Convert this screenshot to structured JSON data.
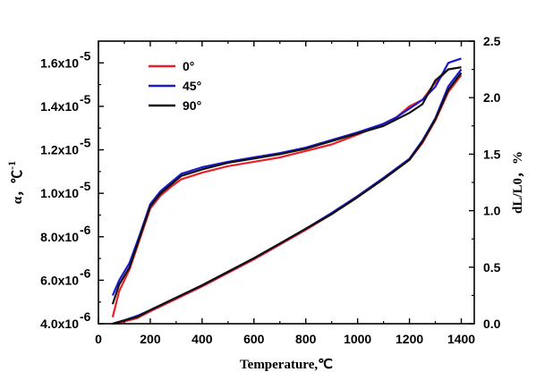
{
  "chart_data": {
    "type": "line",
    "xlabel": "Temperature,℃",
    "ylabel_left": "α，℃",
    "ylabel_left_sup": "-1",
    "ylabel_right": "dL/L0，%",
    "xlim": [
      0,
      1450
    ],
    "ylim_left": [
      4e-06,
      1.7e-05
    ],
    "ylim_right": [
      0,
      2.5
    ],
    "x_ticks": [
      0,
      200,
      400,
      600,
      800,
      1000,
      1200,
      1400
    ],
    "x_tick_labels": [
      "0",
      "200",
      "400",
      "600",
      "800",
      "1000",
      "1200",
      "1400"
    ],
    "y_left_ticks": [
      4e-06,
      6e-06,
      8e-06,
      1e-05,
      1.2e-05,
      1.4e-05,
      1.6e-05
    ],
    "y_left_tick_mantissa": [
      "4.0x10",
      "6.0x10",
      "8.0x10",
      "1.0x10",
      "1.2x10",
      "1.4x10",
      "1.6x10"
    ],
    "y_left_tick_exponent": [
      "-6",
      "-6",
      "-6",
      "-5",
      "-5",
      "-5",
      "-5"
    ],
    "y_right_ticks": [
      0.0,
      0.5,
      1.0,
      1.5,
      2.0,
      2.5
    ],
    "y_right_tick_labels": [
      "0.0",
      "0.5",
      "1.0",
      "1.5",
      "2.0",
      "2.5"
    ],
    "series": [
      {
        "name": "0°",
        "color": "#e8202a",
        "alpha_x": [
          55,
          80,
          120,
          160,
          200,
          240,
          280,
          320,
          400,
          500,
          600,
          700,
          800,
          900,
          1000,
          1100,
          1150,
          1200,
          1250,
          1300,
          1350,
          1400
        ],
        "alpha_y": [
          4.3e-06,
          5.5e-06,
          6.5e-06,
          7.9e-06,
          9.3e-06,
          9.9e-06,
          1.03e-05,
          1.065e-05,
          1.095e-05,
          1.125e-05,
          1.145e-05,
          1.165e-05,
          1.195e-05,
          1.225e-05,
          1.27e-05,
          1.32e-05,
          1.35e-05,
          1.4e-05,
          1.43e-05,
          1.51e-05,
          1.57e-05,
          1.58e-05
        ],
        "dl_x": [
          55,
          100,
          150,
          200,
          300,
          400,
          500,
          600,
          700,
          800,
          900,
          1000,
          1100,
          1200,
          1250,
          1300,
          1350,
          1400
        ],
        "dl_y": [
          0.0,
          0.02,
          0.05,
          0.11,
          0.22,
          0.33,
          0.45,
          0.57,
          0.7,
          0.83,
          0.97,
          1.12,
          1.28,
          1.45,
          1.6,
          1.8,
          2.05,
          2.2
        ]
      },
      {
        "name": "45°",
        "color": "#1a1acc",
        "alpha_x": [
          55,
          80,
          120,
          160,
          200,
          240,
          280,
          320,
          400,
          500,
          600,
          700,
          800,
          900,
          1000,
          1100,
          1150,
          1200,
          1250,
          1300,
          1350,
          1400
        ],
        "alpha_y": [
          5.3e-06,
          6e-06,
          6.8e-06,
          8.1e-06,
          9.5e-06,
          1.01e-05,
          1.05e-05,
          1.09e-05,
          1.12e-05,
          1.145e-05,
          1.165e-05,
          1.185e-05,
          1.21e-05,
          1.245e-05,
          1.28e-05,
          1.32e-05,
          1.35e-05,
          1.39e-05,
          1.43e-05,
          1.49e-05,
          1.6e-05,
          1.62e-05
        ],
        "dl_x": [
          55,
          100,
          150,
          200,
          300,
          400,
          500,
          600,
          700,
          800,
          900,
          1000,
          1100,
          1200,
          1250,
          1300,
          1350,
          1400
        ],
        "dl_y": [
          0.0,
          0.03,
          0.07,
          0.12,
          0.23,
          0.34,
          0.46,
          0.58,
          0.71,
          0.84,
          0.98,
          1.13,
          1.29,
          1.46,
          1.62,
          1.82,
          2.1,
          2.25
        ]
      },
      {
        "name": "90°",
        "color": "#111111",
        "alpha_x": [
          55,
          80,
          120,
          160,
          200,
          240,
          280,
          320,
          400,
          500,
          600,
          700,
          800,
          900,
          1000,
          1100,
          1150,
          1200,
          1250,
          1300,
          1350,
          1400
        ],
        "alpha_y": [
          4.9e-06,
          5.8e-06,
          6.6e-06,
          8e-06,
          9.4e-06,
          1e-05,
          1.04e-05,
          1.08e-05,
          1.11e-05,
          1.14e-05,
          1.16e-05,
          1.18e-05,
          1.205e-05,
          1.24e-05,
          1.275e-05,
          1.31e-05,
          1.34e-05,
          1.37e-05,
          1.41e-05,
          1.52e-05,
          1.57e-05,
          1.58e-05
        ],
        "dl_x": [
          55,
          100,
          150,
          200,
          300,
          400,
          500,
          600,
          700,
          800,
          900,
          1000,
          1100,
          1200,
          1250,
          1300,
          1350,
          1400
        ],
        "dl_y": [
          0.0,
          0.03,
          0.06,
          0.12,
          0.23,
          0.34,
          0.46,
          0.58,
          0.71,
          0.84,
          0.97,
          1.12,
          1.28,
          1.45,
          1.61,
          1.81,
          2.07,
          2.22
        ]
      }
    ],
    "legend": {
      "placement": "top-left",
      "entries": [
        "0°",
        "45°",
        "90°"
      ]
    }
  }
}
